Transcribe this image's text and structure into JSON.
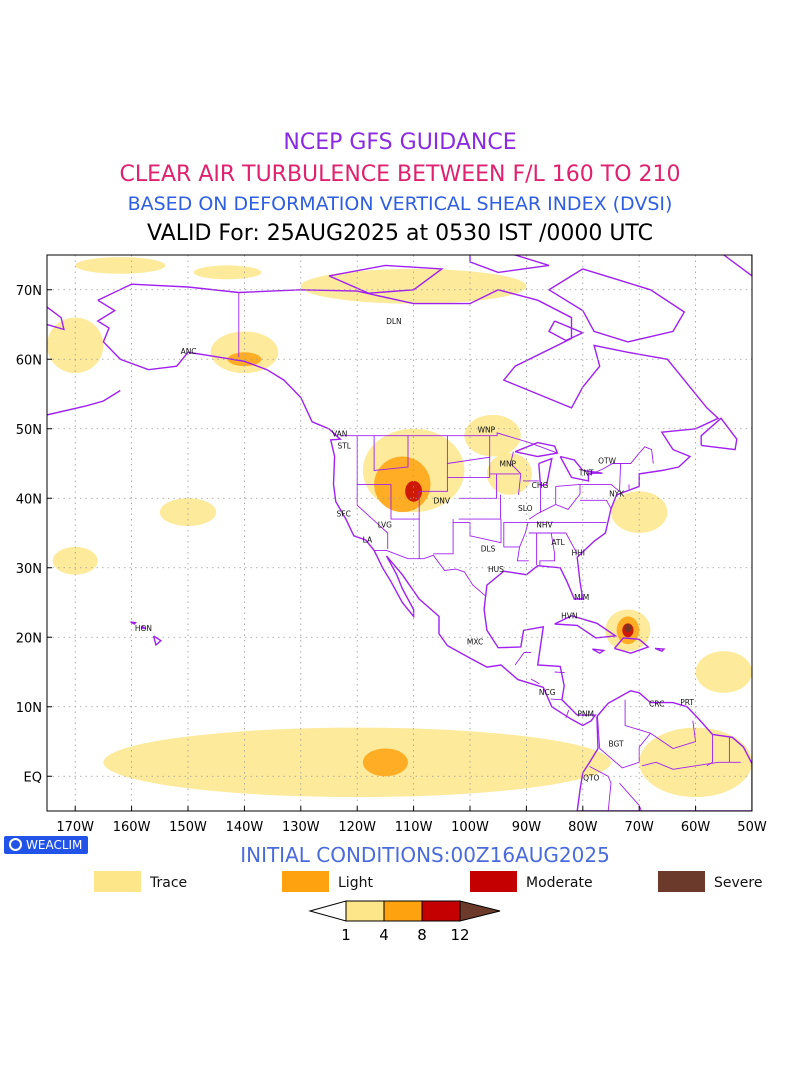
{
  "title": {
    "line1": "NCEP GFS GUIDANCE",
    "line2": "CLEAR AIR TURBULENCE BETWEEN F/L 160 TO 210",
    "line3": "BASED ON DEFORMATION VERTICAL SHEAR INDEX (DVSI)",
    "line4": "VALID For: 25AUG2025 at 0530 IST /0000 UTC"
  },
  "map": {
    "lon_range": [
      -175,
      -50
    ],
    "lat_range": [
      -5,
      75
    ],
    "lat_ticks": [
      {
        "value": 70,
        "label": "70N"
      },
      {
        "value": 60,
        "label": "60N"
      },
      {
        "value": 50,
        "label": "50N"
      },
      {
        "value": 40,
        "label": "40N"
      },
      {
        "value": 30,
        "label": "30N"
      },
      {
        "value": 20,
        "label": "20N"
      },
      {
        "value": 10,
        "label": "10N"
      },
      {
        "value": 0,
        "label": "EQ"
      }
    ],
    "lon_ticks": [
      {
        "value": -170,
        "label": "170W"
      },
      {
        "value": -160,
        "label": "160W"
      },
      {
        "value": -150,
        "label": "150W"
      },
      {
        "value": -140,
        "label": "140W"
      },
      {
        "value": -130,
        "label": "130W"
      },
      {
        "value": -120,
        "label": "120W"
      },
      {
        "value": -110,
        "label": "110W"
      },
      {
        "value": -100,
        "label": "100W"
      },
      {
        "value": -90,
        "label": "90W"
      },
      {
        "value": -80,
        "label": "80W"
      },
      {
        "value": -70,
        "label": "70W"
      },
      {
        "value": -60,
        "label": "60W"
      },
      {
        "value": -50,
        "label": "50W"
      }
    ],
    "stations": [
      {
        "label": "ANC",
        "lon": -149.9,
        "lat": 61.2
      },
      {
        "label": "DLN",
        "lon": -113.5,
        "lat": 65.5
      },
      {
        "label": "VAN",
        "lon": -123.1,
        "lat": 49.3
      },
      {
        "label": "STL",
        "lon": -122.3,
        "lat": 47.6
      },
      {
        "label": "WNP",
        "lon": -97.1,
        "lat": 49.9
      },
      {
        "label": "MNP",
        "lon": -93.3,
        "lat": 45.0
      },
      {
        "label": "OTW",
        "lon": -75.7,
        "lat": 45.4
      },
      {
        "label": "TNT",
        "lon": -79.4,
        "lat": 43.7
      },
      {
        "label": "CHG",
        "lon": -87.6,
        "lat": 41.9
      },
      {
        "label": "NYK",
        "lon": -74.0,
        "lat": 40.7
      },
      {
        "label": "DNV",
        "lon": -105.0,
        "lat": 39.7
      },
      {
        "label": "SFC",
        "lon": -122.4,
        "lat": 37.8
      },
      {
        "label": "SLO",
        "lon": -90.2,
        "lat": 38.6
      },
      {
        "label": "LVG",
        "lon": -115.1,
        "lat": 36.2
      },
      {
        "label": "LA",
        "lon": -118.2,
        "lat": 34.1
      },
      {
        "label": "NHV",
        "lon": -86.8,
        "lat": 36.2
      },
      {
        "label": "ATL",
        "lon": -84.4,
        "lat": 33.7
      },
      {
        "label": "HHI",
        "lon": -80.8,
        "lat": 32.2
      },
      {
        "label": "DLS",
        "lon": -96.8,
        "lat": 32.8
      },
      {
        "label": "HUS",
        "lon": -95.4,
        "lat": 29.8
      },
      {
        "label": "MIM",
        "lon": -80.2,
        "lat": 25.8
      },
      {
        "label": "HVN",
        "lon": -82.4,
        "lat": 23.1
      },
      {
        "label": "HON",
        "lon": -157.9,
        "lat": 21.3
      },
      {
        "label": "MXC",
        "lon": -99.1,
        "lat": 19.4
      },
      {
        "label": "NCG",
        "lon": -86.3,
        "lat": 12.1
      },
      {
        "label": "PNM",
        "lon": -79.5,
        "lat": 9.0
      },
      {
        "label": "CRC",
        "lon": -66.9,
        "lat": 10.5
      },
      {
        "label": "PRT",
        "lon": -61.5,
        "lat": 10.7
      },
      {
        "label": "BGT",
        "lon": -74.1,
        "lat": 4.7
      },
      {
        "label": "QTO",
        "lon": -78.5,
        "lat": -0.2
      }
    ],
    "turbulence_regions": [
      {
        "level": "trace",
        "lon": -162,
        "lat": 73.5,
        "rx": 8,
        "ry": 1.2
      },
      {
        "level": "trace",
        "lon": -143,
        "lat": 72.5,
        "rx": 6,
        "ry": 1.0
      },
      {
        "level": "trace",
        "lon": -110,
        "lat": 70.5,
        "rx": 20,
        "ry": 2.5
      },
      {
        "level": "trace",
        "lon": -170,
        "lat": 62,
        "rx": 5,
        "ry": 4
      },
      {
        "level": "trace",
        "lon": -140,
        "lat": 61,
        "rx": 6,
        "ry": 3
      },
      {
        "level": "trace",
        "lon": -110,
        "lat": 44,
        "rx": 9,
        "ry": 6
      },
      {
        "level": "trace",
        "lon": -96,
        "lat": 49,
        "rx": 5,
        "ry": 3
      },
      {
        "level": "trace",
        "lon": -93,
        "lat": 43.5,
        "rx": 4,
        "ry": 3
      },
      {
        "level": "trace",
        "lon": -70,
        "lat": 38,
        "rx": 5,
        "ry": 3
      },
      {
        "level": "trace",
        "lon": -72,
        "lat": 21,
        "rx": 4,
        "ry": 3
      },
      {
        "level": "trace",
        "lon": -150,
        "lat": 38,
        "rx": 5,
        "ry": 2
      },
      {
        "level": "trace",
        "lon": -170,
        "lat": 31,
        "rx": 4,
        "ry": 2
      },
      {
        "level": "trace",
        "lon": -120,
        "lat": 2,
        "rx": 45,
        "ry": 5
      },
      {
        "level": "trace",
        "lon": -60,
        "lat": 2,
        "rx": 10,
        "ry": 5
      },
      {
        "level": "trace",
        "lon": -55,
        "lat": 15,
        "rx": 5,
        "ry": 3
      },
      {
        "level": "light",
        "lon": -112,
        "lat": 42,
        "rx": 5,
        "ry": 4
      },
      {
        "level": "light",
        "lon": -140,
        "lat": 60,
        "rx": 3,
        "ry": 1
      },
      {
        "level": "light",
        "lon": -72,
        "lat": 21,
        "rx": 2,
        "ry": 2
      },
      {
        "level": "light",
        "lon": -115,
        "lat": 2,
        "rx": 4,
        "ry": 2
      },
      {
        "level": "moderate",
        "lon": -110,
        "lat": 41,
        "rx": 1.5,
        "ry": 1.5
      },
      {
        "level": "moderate",
        "lon": -72,
        "lat": 21,
        "rx": 1,
        "ry": 1
      },
      {
        "level": "severe",
        "lon": -72,
        "lat": 21.3,
        "rx": 0.6,
        "ry": 0.6
      }
    ]
  },
  "initial_conditions": "INITIAL CONDITIONS:00Z16AUG2025",
  "logo_text": "WEACLIM",
  "legend": [
    {
      "label": "Trace",
      "color": "#fde68a"
    },
    {
      "label": "Light",
      "color": "#ffa20f"
    },
    {
      "label": "Moderate",
      "color": "#c40000"
    },
    {
      "label": "Severe",
      "color": "#6b3a2a"
    }
  ],
  "colorbar": {
    "ticks": [
      "1",
      "4",
      "8",
      "12"
    ],
    "under_color": "#ffffff",
    "over_color": "#6b3a2a",
    "segment_colors": [
      "#fde68a",
      "#ffa20f",
      "#c40000"
    ]
  },
  "colors": {
    "coast": "#a020f0",
    "grid": "#9a9a9a"
  }
}
